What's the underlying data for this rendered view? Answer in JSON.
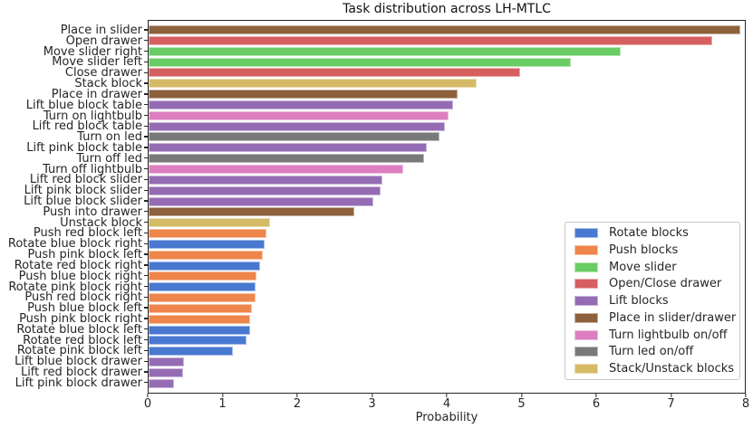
{
  "chart_data": {
    "type": "bar",
    "orientation": "horizontal",
    "title": "Task distribution across LH-MTLC",
    "xlabel": "Probability",
    "xlim": [
      0,
      8
    ],
    "x_ticks": [
      "0",
      "1",
      "2",
      "3",
      "4",
      "5",
      "6",
      "7",
      "8"
    ],
    "grid": false,
    "legend_position": "lower right",
    "group_colors": {
      "rotate": "#4878D0",
      "push": "#EE854A",
      "slider": "#6ACC64",
      "drawer": "#D65F5F",
      "lift": "#956CB4",
      "place": "#8C613C",
      "lightbulb": "#DC7EC0",
      "led": "#797979",
      "stack": "#D5BB67"
    },
    "bars": [
      {
        "label": "Place in slider",
        "group": "place",
        "value": 7.94
      },
      {
        "label": "Open drawer",
        "group": "drawer",
        "value": 7.56
      },
      {
        "label": "Move slider right",
        "group": "slider",
        "value": 6.33
      },
      {
        "label": "Move slider left",
        "group": "slider",
        "value": 5.67
      },
      {
        "label": "Close drawer",
        "group": "drawer",
        "value": 4.99
      },
      {
        "label": "Stack block",
        "group": "stack",
        "value": 4.4
      },
      {
        "label": "Place in drawer",
        "group": "place",
        "value": 4.15
      },
      {
        "label": "Lift blue block table",
        "group": "lift",
        "value": 4.09
      },
      {
        "label": "Turn on lightbulb",
        "group": "lightbulb",
        "value": 4.03
      },
      {
        "label": "Lift red block table",
        "group": "lift",
        "value": 3.97
      },
      {
        "label": "Turn on led",
        "group": "led",
        "value": 3.9
      },
      {
        "label": "Lift pink block table",
        "group": "lift",
        "value": 3.73
      },
      {
        "label": "Turn off led",
        "group": "led",
        "value": 3.69
      },
      {
        "label": "Turn off lightbulb",
        "group": "lightbulb",
        "value": 3.42
      },
      {
        "label": "Lift red block slider",
        "group": "lift",
        "value": 3.14
      },
      {
        "label": "Lift pink block slider",
        "group": "lift",
        "value": 3.11
      },
      {
        "label": "Lift blue block slider",
        "group": "lift",
        "value": 3.01
      },
      {
        "label": "Push into drawer",
        "group": "place",
        "value": 2.76
      },
      {
        "label": "Unstack block",
        "group": "stack",
        "value": 1.63
      },
      {
        "label": "Push red block left",
        "group": "push",
        "value": 1.58
      },
      {
        "label": "Rotate blue block right",
        "group": "rotate",
        "value": 1.56
      },
      {
        "label": "Push pink block left",
        "group": "push",
        "value": 1.53
      },
      {
        "label": "Rotate red block right",
        "group": "rotate",
        "value": 1.5
      },
      {
        "label": "Push blue block right",
        "group": "push",
        "value": 1.45
      },
      {
        "label": "Rotate pink block right",
        "group": "rotate",
        "value": 1.44
      },
      {
        "label": "Push red block right",
        "group": "push",
        "value": 1.44
      },
      {
        "label": "Push blue block left",
        "group": "push",
        "value": 1.39
      },
      {
        "label": "Push pink block right",
        "group": "push",
        "value": 1.36
      },
      {
        "label": "Rotate blue block left",
        "group": "rotate",
        "value": 1.36
      },
      {
        "label": "Rotate red block left",
        "group": "rotate",
        "value": 1.31
      },
      {
        "label": "Rotate pink block left",
        "group": "rotate",
        "value": 1.13
      },
      {
        "label": "Lift blue block drawer",
        "group": "lift",
        "value": 0.47
      },
      {
        "label": "Lift red block drawer",
        "group": "lift",
        "value": 0.46
      },
      {
        "label": "Lift pink block drawer",
        "group": "lift",
        "value": 0.34
      }
    ],
    "legend": [
      {
        "label": "Rotate blocks",
        "color": "#4878D0"
      },
      {
        "label": "Push blocks",
        "color": "#EE854A"
      },
      {
        "label": "Move slider",
        "color": "#6ACC64"
      },
      {
        "label": "Open/Close drawer",
        "color": "#D65F5F"
      },
      {
        "label": "Lift blocks",
        "color": "#956CB4"
      },
      {
        "label": "Place in slider/drawer",
        "color": "#8C613C"
      },
      {
        "label": "Turn lightbulb on/off",
        "color": "#DC7EC0"
      },
      {
        "label": "Turn led on/off",
        "color": "#797979"
      },
      {
        "label": "Stack/Unstack blocks",
        "color": "#D5BB67"
      }
    ]
  }
}
